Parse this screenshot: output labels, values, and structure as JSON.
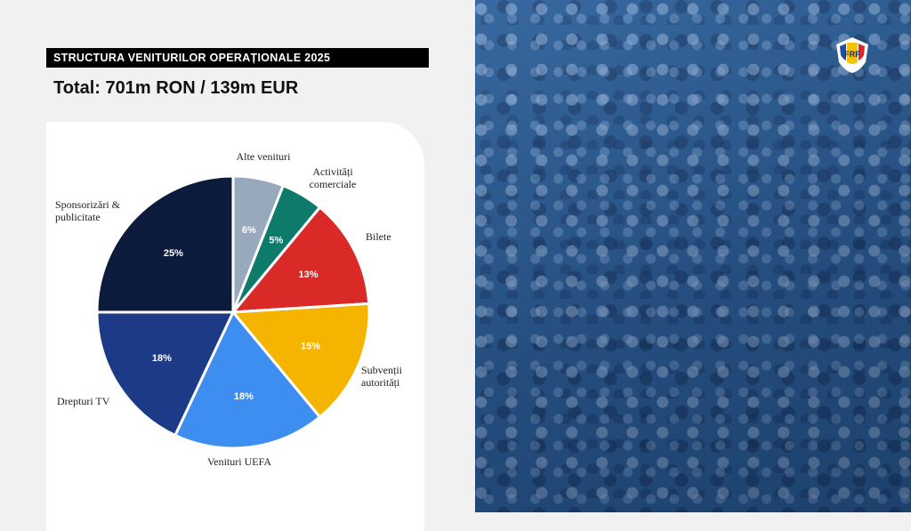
{
  "header": {
    "title": "STRUCTURA VENITURILOR OPERAȚIONALE 2025",
    "subtitle": "Total: 701m RON / 139m EUR"
  },
  "logo": {
    "text": "FRF",
    "icon": "frf-logo-icon"
  },
  "background": {
    "image": "stadium-crowd-photo",
    "tint": "#2c5d92"
  },
  "chart_data": {
    "type": "pie",
    "title": "STRUCTURA VENITURILOR OPERAȚIONALE 2025",
    "subtitle": "Total: 701m RON / 139m EUR",
    "slices": [
      {
        "label": "Alte venituri",
        "value": 6,
        "display": "6%",
        "color": "#98a8bd",
        "label_lines": [
          "Alte venituri"
        ]
      },
      {
        "label": "Activități comerciale",
        "value": 5,
        "display": "5%",
        "color": "#0e7a6a",
        "label_lines": [
          "Activități",
          "comerciale"
        ]
      },
      {
        "label": "Bilete",
        "value": 13,
        "display": "13%",
        "color": "#d92a27",
        "label_lines": [
          "Bilete"
        ]
      },
      {
        "label": "Subvenții autorități",
        "value": 15,
        "display": "15%",
        "color": "#f4b400",
        "label_lines": [
          "Subvenții",
          "autorități"
        ]
      },
      {
        "label": "Venituri UEFA",
        "value": 18,
        "display": "18%",
        "color": "#3d8ef0",
        "label_lines": [
          "Venituri UEFA"
        ]
      },
      {
        "label": "Drepturi TV",
        "value": 18,
        "display": "18%",
        "color": "#1c3a86",
        "label_lines": [
          "Drepturi TV"
        ]
      },
      {
        "label": "Sponsorizări & publicitate",
        "value": 25,
        "display": "25%",
        "color": "#0c1a3c",
        "label_lines": [
          "Sponsorizări &",
          "publicitate"
        ]
      }
    ],
    "start_angle_deg": 0,
    "direction": "clockwise"
  }
}
